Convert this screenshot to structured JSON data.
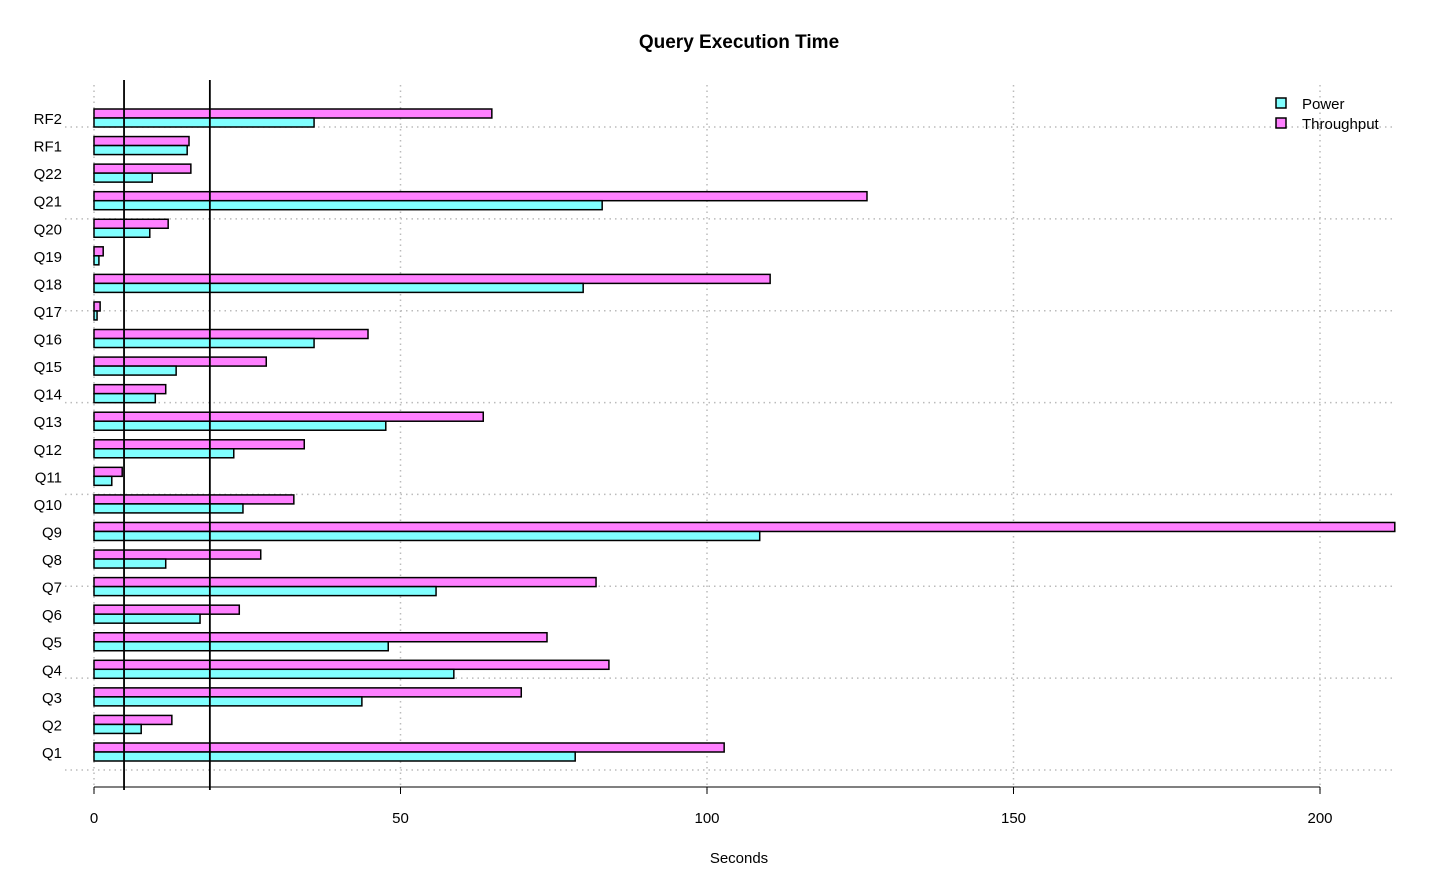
{
  "chart_data": {
    "type": "bar",
    "orientation": "horizontal",
    "title": "Query Execution Time",
    "xlabel": "Seconds",
    "ylabel": "",
    "xlim": [
      0,
      212
    ],
    "xticks": [
      0,
      50,
      100,
      150,
      200
    ],
    "grid": true,
    "legend_position": "top-right",
    "reference_lines": [
      4.9,
      18.9
    ],
    "categories": [
      "Q1",
      "Q2",
      "Q3",
      "Q4",
      "Q5",
      "Q6",
      "Q7",
      "Q8",
      "Q9",
      "Q10",
      "Q11",
      "Q12",
      "Q13",
      "Q14",
      "Q15",
      "Q16",
      "Q17",
      "Q18",
      "Q19",
      "Q20",
      "Q21",
      "Q22",
      "RF1",
      "RF2"
    ],
    "series": [
      {
        "name": "Power",
        "color": "#80FFFF",
        "values": [
          78.5,
          7.7,
          43.7,
          58.7,
          48.0,
          17.3,
          55.8,
          11.7,
          108.6,
          24.3,
          2.9,
          22.8,
          47.6,
          10.0,
          13.4,
          35.9,
          0.5,
          79.8,
          0.8,
          9.1,
          82.9,
          9.5,
          15.2,
          35.9
        ]
      },
      {
        "name": "Throughput",
        "color": "#FF80FF",
        "values": [
          102.8,
          12.7,
          69.7,
          84.0,
          73.9,
          23.7,
          81.9,
          27.2,
          212.2,
          32.6,
          4.6,
          34.3,
          63.5,
          11.7,
          28.1,
          44.7,
          1.0,
          110.3,
          1.5,
          12.1,
          126.1,
          15.8,
          15.5,
          64.9
        ]
      }
    ]
  }
}
